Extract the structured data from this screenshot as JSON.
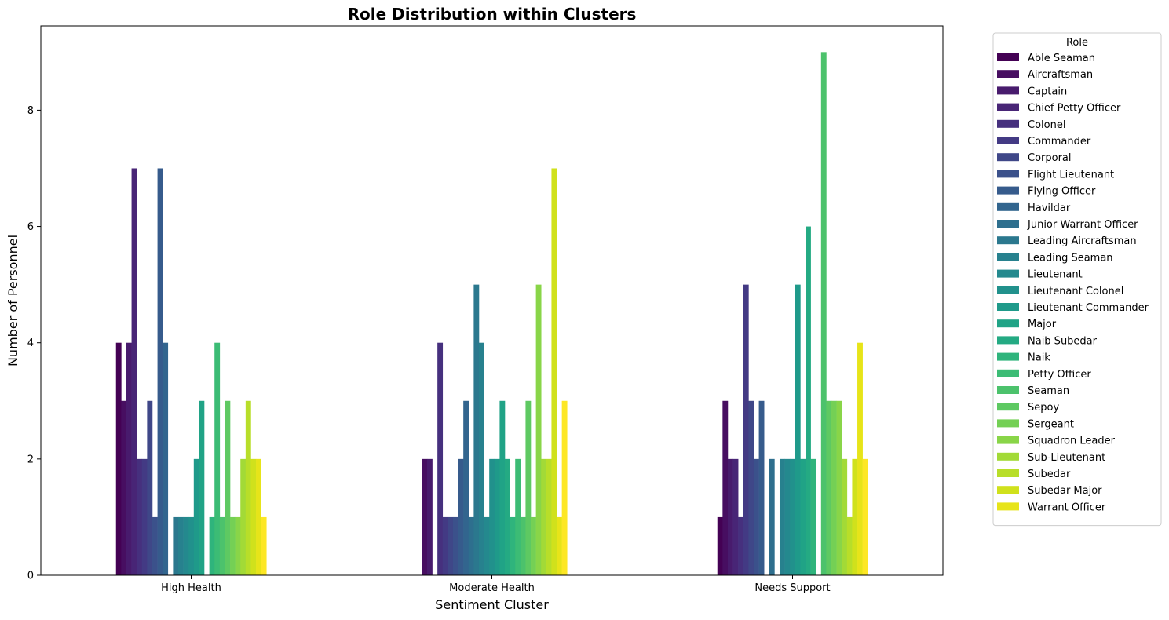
{
  "chart_data": {
    "type": "bar",
    "title": "Role Distribution within Clusters",
    "xlabel": "Sentiment Cluster",
    "ylabel": "Number of Personnel",
    "categories": [
      "High Health",
      "Moderate Health",
      "Needs Support"
    ],
    "ylim": [
      0,
      9.45
    ],
    "yticks": [
      0,
      2,
      4,
      6,
      8
    ],
    "grid": false,
    "legend": {
      "title": "Role",
      "placement": "outside-right"
    },
    "colormap": "viridis",
    "series": [
      {
        "name": "Able Seaman",
        "color": "#440154",
        "values": [
          4,
          0,
          1
        ]
      },
      {
        "name": "Aircraftsman",
        "color": "#470e61",
        "values": [
          3,
          2,
          3
        ]
      },
      {
        "name": "Captain",
        "color": "#481b6d",
        "values": [
          4,
          2,
          2
        ]
      },
      {
        "name": "Chief Petty Officer",
        "color": "#482576",
        "values": [
          7,
          0,
          2
        ]
      },
      {
        "name": "Colonel",
        "color": "#46307e",
        "values": [
          2,
          4,
          1
        ]
      },
      {
        "name": "Commander",
        "color": "#433a84",
        "values": [
          2,
          1,
          5
        ]
      },
      {
        "name": "Corporal",
        "color": "#3f4788",
        "values": [
          3,
          1,
          3
        ]
      },
      {
        "name": "Flight Lieutenant",
        "color": "#3b518b",
        "values": [
          1,
          1,
          2
        ]
      },
      {
        "name": "Flying Officer",
        "color": "#365b8c",
        "values": [
          7,
          2,
          3
        ]
      },
      {
        "name": "Havildar",
        "color": "#32658e",
        "values": [
          4,
          3,
          0
        ]
      },
      {
        "name": "Junior Warrant Officer",
        "color": "#2e6f8e",
        "values": [
          0,
          1,
          2
        ]
      },
      {
        "name": "Leading Aircraftsman",
        "color": "#2b788e",
        "values": [
          1,
          5,
          0
        ]
      },
      {
        "name": "Leading Seaman",
        "color": "#27818e",
        "values": [
          1,
          4,
          2
        ]
      },
      {
        "name": "Lieutenant",
        "color": "#24898e",
        "values": [
          1,
          1,
          2
        ]
      },
      {
        "name": "Lieutenant Colonel",
        "color": "#21918c",
        "values": [
          1,
          2,
          2
        ]
      },
      {
        "name": "Lieutenant Commander",
        "color": "#1f9a8a",
        "values": [
          2,
          2,
          5
        ]
      },
      {
        "name": "Major",
        "color": "#20a386",
        "values": [
          3,
          3,
          2
        ]
      },
      {
        "name": "Naib Subedar",
        "color": "#24aa83",
        "values": [
          0,
          2,
          6
        ]
      },
      {
        "name": "Naik",
        "color": "#2fb47c",
        "values": [
          1,
          1,
          2
        ]
      },
      {
        "name": "Petty Officer",
        "color": "#3cbc75",
        "values": [
          4,
          2,
          0
        ]
      },
      {
        "name": "Seaman",
        "color": "#4cc26c",
        "values": [
          1,
          1,
          9
        ]
      },
      {
        "name": "Sepoy",
        "color": "#5ec962",
        "values": [
          3,
          3,
          3
        ]
      },
      {
        "name": "Sergeant",
        "color": "#74d055",
        "values": [
          1,
          1,
          3
        ]
      },
      {
        "name": "Squadron Leader",
        "color": "#89d548",
        "values": [
          1,
          5,
          3
        ]
      },
      {
        "name": "Sub-Lieutenant",
        "color": "#a2da37",
        "values": [
          2,
          2,
          2
        ]
      },
      {
        "name": "Subedar",
        "color": "#b8de29",
        "values": [
          3,
          2,
          1
        ]
      },
      {
        "name": "Subedar Major",
        "color": "#d0e11c",
        "values": [
          2,
          7,
          2
        ]
      },
      {
        "name": "Warrant Officer",
        "color": "#e7e419",
        "values": [
          2,
          1,
          4
        ]
      },
      {
        "name": "",
        "color": "#fde725",
        "values": [
          1,
          3,
          2
        ]
      }
    ]
  }
}
